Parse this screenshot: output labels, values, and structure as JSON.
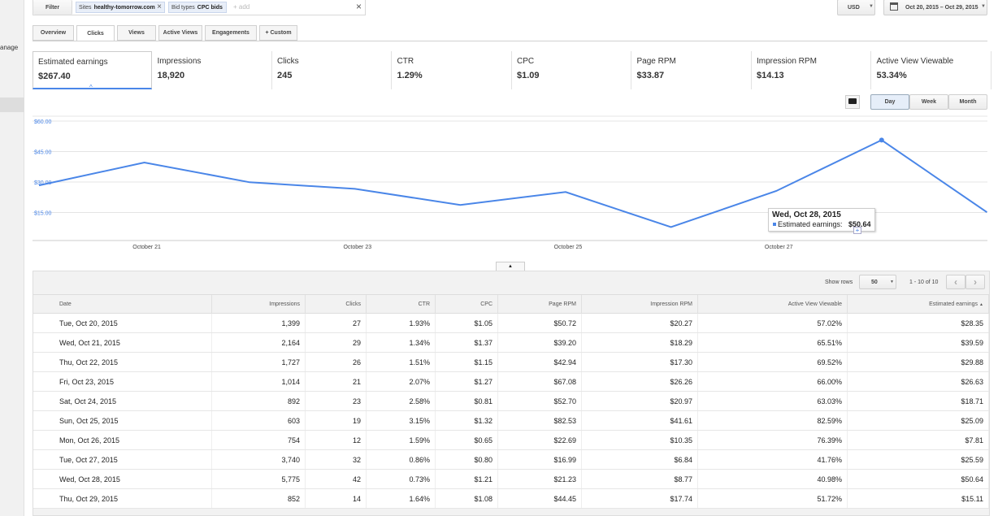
{
  "sidebar": {
    "text": "anage"
  },
  "filter": {
    "button": "Filter",
    "chips": [
      {
        "key": "Sites",
        "value": "healthy-tomorrow.com"
      },
      {
        "key": "Bid types",
        "value": "CPC bids"
      }
    ],
    "placeholder": "+ add"
  },
  "currency": "USD",
  "date_range": "Oct 20, 2015 – Oct 29, 2015",
  "tabs": [
    "Overview",
    "Clicks",
    "Views",
    "Active Views",
    "Engagements",
    "+ Custom"
  ],
  "metrics": [
    {
      "label": "Estimated earnings",
      "value": "$267.40"
    },
    {
      "label": "Impressions",
      "value": "18,920"
    },
    {
      "label": "Clicks",
      "value": "245"
    },
    {
      "label": "CTR",
      "value": "1.29%"
    },
    {
      "label": "CPC",
      "value": "$1.09"
    },
    {
      "label": "Page RPM",
      "value": "$33.87"
    },
    {
      "label": "Impression RPM",
      "value": "$14.13"
    },
    {
      "label": "Active View Viewable",
      "value": "53.34%"
    }
  ],
  "granularity": [
    "Day",
    "Week",
    "Month"
  ],
  "chart_data": {
    "type": "line",
    "categories": [
      null,
      "October 21",
      null,
      "October 23",
      null,
      "October 25",
      null,
      "October 27",
      null,
      null
    ],
    "values": [
      28.35,
      39.59,
      29.88,
      26.63,
      18.71,
      25.09,
      7.81,
      25.59,
      50.64,
      15.11
    ],
    "color": "#4a86e8",
    "ylim": [
      0,
      60
    ],
    "yticks": [
      {
        "value": 15,
        "label": "$15.00"
      },
      {
        "value": 30,
        "label": "$30.00"
      },
      {
        "value": 45,
        "label": "$45.00"
      },
      {
        "value": 60,
        "label": "$60.00"
      }
    ],
    "grid": true,
    "tooltip": {
      "title": "Wed, Oct 28, 2015",
      "label": "Estimated earnings:",
      "value": "$50.64"
    }
  },
  "table": {
    "show_rows_label": "Show rows",
    "rows_per_page": "50",
    "pagination": "1 - 10 of 10",
    "columns": [
      "Date",
      "Impressions",
      "Clicks",
      "CTR",
      "CPC",
      "Page RPM",
      "Impression RPM",
      "Active View Viewable",
      "Estimated earnings"
    ],
    "rows": [
      [
        "Tue, Oct 20, 2015",
        "1,399",
        "27",
        "1.93%",
        "$1.05",
        "$50.72",
        "$20.27",
        "57.02%",
        "$28.35"
      ],
      [
        "Wed, Oct 21, 2015",
        "2,164",
        "29",
        "1.34%",
        "$1.37",
        "$39.20",
        "$18.29",
        "65.51%",
        "$39.59"
      ],
      [
        "Thu, Oct 22, 2015",
        "1,727",
        "26",
        "1.51%",
        "$1.15",
        "$42.94",
        "$17.30",
        "69.52%",
        "$29.88"
      ],
      [
        "Fri, Oct 23, 2015",
        "1,014",
        "21",
        "2.07%",
        "$1.27",
        "$67.08",
        "$26.26",
        "66.00%",
        "$26.63"
      ],
      [
        "Sat, Oct 24, 2015",
        "892",
        "23",
        "2.58%",
        "$0.81",
        "$52.70",
        "$20.97",
        "63.03%",
        "$18.71"
      ],
      [
        "Sun, Oct 25, 2015",
        "603",
        "19",
        "3.15%",
        "$1.32",
        "$82.53",
        "$41.61",
        "82.59%",
        "$25.09"
      ],
      [
        "Mon, Oct 26, 2015",
        "754",
        "12",
        "1.59%",
        "$0.65",
        "$22.69",
        "$10.35",
        "76.39%",
        "$7.81"
      ],
      [
        "Tue, Oct 27, 2015",
        "3,740",
        "32",
        "0.86%",
        "$0.80",
        "$16.99",
        "$6.84",
        "41.76%",
        "$25.59"
      ],
      [
        "Wed, Oct 28, 2015",
        "5,775",
        "42",
        "0.73%",
        "$1.21",
        "$21.23",
        "$8.77",
        "40.98%",
        "$50.64"
      ],
      [
        "Thu, Oct 29, 2015",
        "852",
        "14",
        "1.64%",
        "$1.08",
        "$44.45",
        "$17.74",
        "51.72%",
        "$15.11"
      ]
    ]
  }
}
